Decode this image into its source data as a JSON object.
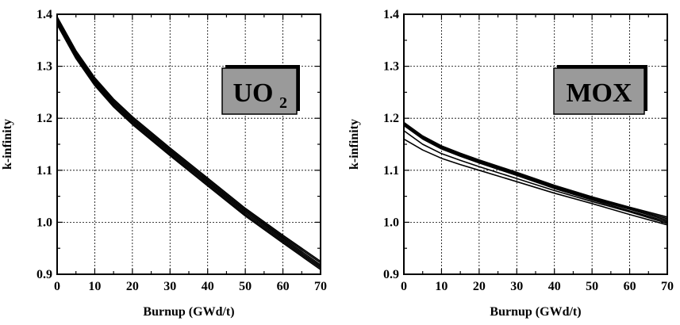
{
  "chart_data": [
    {
      "type": "line",
      "title": "",
      "badge": {
        "main": "UO",
        "sub": "2"
      },
      "xlabel": "Burnup (GWd/t)",
      "ylabel": "k-infinity",
      "xlim": [
        0,
        70
      ],
      "ylim": [
        0.9,
        1.4
      ],
      "xticks": [
        "0",
        "10",
        "20",
        "30",
        "40",
        "50",
        "60",
        "70"
      ],
      "yticks": [
        "0.9",
        "1.0",
        "1.1",
        "1.2",
        "1.3",
        "1.4"
      ],
      "grid": true,
      "x": [
        0,
        5,
        10,
        15,
        20,
        30,
        40,
        50,
        60,
        70
      ],
      "series": [
        {
          "values": [
            1.395,
            1.33,
            1.278,
            1.237,
            1.203,
            1.143,
            1.085,
            1.027,
            0.975,
            0.925
          ]
        },
        {
          "values": [
            1.392,
            1.327,
            1.275,
            1.234,
            1.2,
            1.14,
            1.082,
            1.024,
            0.972,
            0.922
          ]
        },
        {
          "values": [
            1.389,
            1.324,
            1.272,
            1.231,
            1.197,
            1.137,
            1.079,
            1.021,
            0.969,
            0.918
          ]
        },
        {
          "values": [
            1.386,
            1.321,
            1.269,
            1.228,
            1.194,
            1.134,
            1.076,
            1.018,
            0.966,
            0.915
          ]
        },
        {
          "values": [
            1.383,
            1.318,
            1.266,
            1.225,
            1.191,
            1.131,
            1.073,
            1.015,
            0.963,
            0.912
          ]
        },
        {
          "values": [
            1.38,
            1.315,
            1.263,
            1.222,
            1.188,
            1.128,
            1.07,
            1.012,
            0.96,
            0.909
          ]
        }
      ]
    },
    {
      "type": "line",
      "title": "",
      "badge": {
        "main": "MOX",
        "sub": ""
      },
      "xlabel": "Burnup (GWd/t)",
      "ylabel": "k-infinity",
      "xlim": [
        0,
        70
      ],
      "ylim": [
        0.9,
        1.4
      ],
      "xticks": [
        "0",
        "10",
        "20",
        "30",
        "40",
        "50",
        "60",
        "70"
      ],
      "yticks": [
        "0.9",
        "1.0",
        "1.1",
        "1.2",
        "1.3",
        "1.4"
      ],
      "grid": true,
      "x": [
        0,
        5,
        10,
        15,
        20,
        30,
        40,
        50,
        60,
        70
      ],
      "series": [
        {
          "values": [
            1.192,
            1.166,
            1.147,
            1.133,
            1.12,
            1.096,
            1.071,
            1.049,
            1.029,
            1.01
          ]
        },
        {
          "values": [
            1.19,
            1.164,
            1.145,
            1.131,
            1.118,
            1.094,
            1.069,
            1.047,
            1.027,
            1.007
          ]
        },
        {
          "values": [
            1.188,
            1.162,
            1.143,
            1.129,
            1.116,
            1.092,
            1.067,
            1.045,
            1.025,
            1.004
          ]
        },
        {
          "values": [
            1.186,
            1.16,
            1.141,
            1.127,
            1.114,
            1.09,
            1.065,
            1.043,
            1.022,
            1.001
          ]
        },
        {
          "values": [
            1.176,
            1.15,
            1.132,
            1.119,
            1.107,
            1.084,
            1.061,
            1.04,
            1.02,
            0.998
          ]
        },
        {
          "values": [
            1.16,
            1.139,
            1.123,
            1.111,
            1.1,
            1.078,
            1.056,
            1.036,
            1.015,
            0.995
          ]
        }
      ]
    }
  ]
}
